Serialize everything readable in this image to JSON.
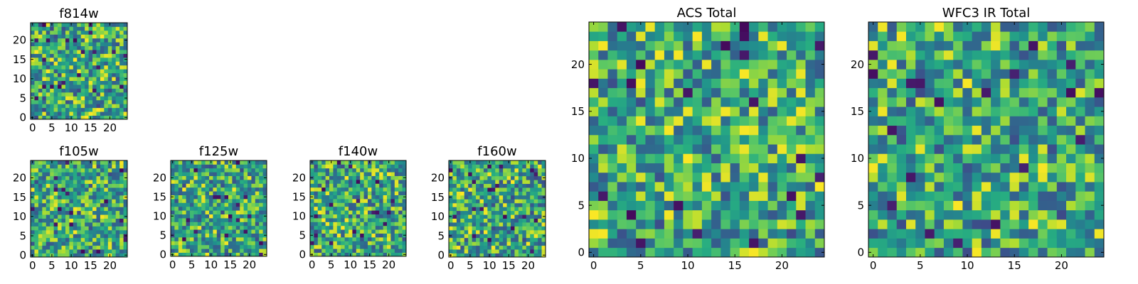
{
  "chart_data": [
    {
      "type": "heatmap",
      "title": "f814w",
      "nx": 25,
      "ny": 25,
      "xlim": [
        0,
        24
      ],
      "ylim": [
        0,
        24
      ],
      "xticks": [
        0,
        5,
        10,
        15,
        20
      ],
      "yticks": [
        0,
        5,
        10,
        15,
        20
      ],
      "colormap": "viridis",
      "seed": 814
    },
    {
      "type": "heatmap",
      "title": "f105w",
      "nx": 25,
      "ny": 25,
      "xlim": [
        0,
        24
      ],
      "ylim": [
        0,
        24
      ],
      "xticks": [
        0,
        5,
        10,
        15,
        20
      ],
      "yticks": [
        0,
        5,
        10,
        15,
        20
      ],
      "colormap": "viridis",
      "seed": 105
    },
    {
      "type": "heatmap",
      "title": "f125w",
      "nx": 25,
      "ny": 25,
      "xlim": [
        0,
        24
      ],
      "ylim": [
        0,
        24
      ],
      "xticks": [
        0,
        5,
        10,
        15,
        20
      ],
      "yticks": [
        0,
        5,
        10,
        15,
        20
      ],
      "colormap": "viridis",
      "seed": 125
    },
    {
      "type": "heatmap",
      "title": "f140w",
      "nx": 25,
      "ny": 25,
      "xlim": [
        0,
        24
      ],
      "ylim": [
        0,
        24
      ],
      "xticks": [
        0,
        5,
        10,
        15,
        20
      ],
      "yticks": [
        0,
        5,
        10,
        15,
        20
      ],
      "colormap": "viridis",
      "seed": 140
    },
    {
      "type": "heatmap",
      "title": "f160w",
      "nx": 25,
      "ny": 25,
      "xlim": [
        0,
        24
      ],
      "ylim": [
        0,
        24
      ],
      "xticks": [
        0,
        5,
        10,
        15,
        20
      ],
      "yticks": [
        0,
        5,
        10,
        15,
        20
      ],
      "colormap": "viridis",
      "seed": 160
    },
    {
      "type": "heatmap",
      "title": "ACS Total",
      "nx": 25,
      "ny": 25,
      "xlim": [
        0,
        24
      ],
      "ylim": [
        0,
        24
      ],
      "xticks": [
        0,
        5,
        10,
        15,
        20
      ],
      "yticks": [
        0,
        5,
        10,
        15,
        20
      ],
      "colormap": "viridis",
      "seed": 901
    },
    {
      "type": "heatmap",
      "title": "WFC3 IR Total",
      "nx": 25,
      "ny": 25,
      "xlim": [
        0,
        24
      ],
      "ylim": [
        0,
        24
      ],
      "xticks": [
        0,
        5,
        10,
        15,
        20
      ],
      "yticks": [
        0,
        5,
        10,
        15,
        20
      ],
      "colormap": "viridis",
      "seed": 902
    }
  ]
}
